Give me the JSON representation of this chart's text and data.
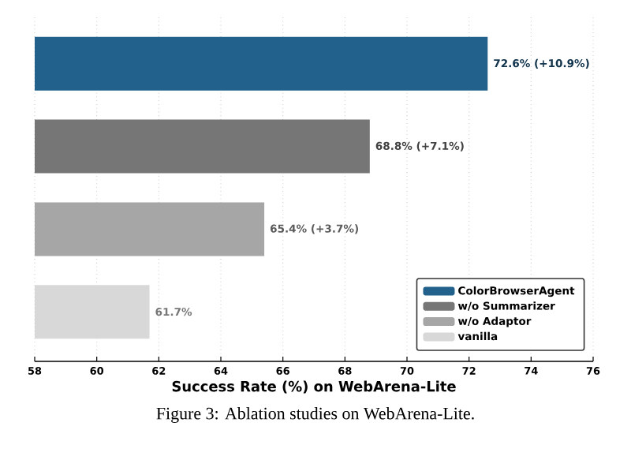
{
  "chart_data": {
    "type": "bar",
    "orientation": "horizontal",
    "categories": [
      null,
      null,
      null,
      null
    ],
    "xlabel": "Success Rate (%) on WebArena-Lite",
    "xlim": [
      58,
      76
    ],
    "xticks": [
      58,
      60,
      62,
      64,
      66,
      68,
      70,
      72,
      74,
      76
    ],
    "grid": "x",
    "legend": "bottom right",
    "series": [
      {
        "name": "ColorBrowserAgent",
        "color": "#21618c",
        "values": [
          72.6,
          null,
          null,
          null
        ],
        "value_labels": [
          "72.6% (+10.9%)",
          null,
          null,
          null
        ]
      },
      {
        "name": "w/o Summarizer",
        "color": "#767676",
        "values": [
          null,
          68.8,
          null,
          null
        ],
        "value_labels": [
          null,
          "68.8% (+7.1%)",
          null,
          null
        ]
      },
      {
        "name": "w/o Adaptor",
        "color": "#a6a6a6",
        "values": [
          null,
          null,
          65.4,
          null
        ],
        "value_labels": [
          null,
          null,
          "65.4% (+3.7%)",
          null
        ]
      },
      {
        "name": "vanilla",
        "color": "#d8d8d8",
        "values": [
          null,
          null,
          null,
          61.7
        ],
        "value_labels": [
          null,
          null,
          null,
          "61.7%"
        ]
      }
    ],
    "annotations": [
      "Figure 3: Ablation studies on WebArena-Lite."
    ]
  }
}
